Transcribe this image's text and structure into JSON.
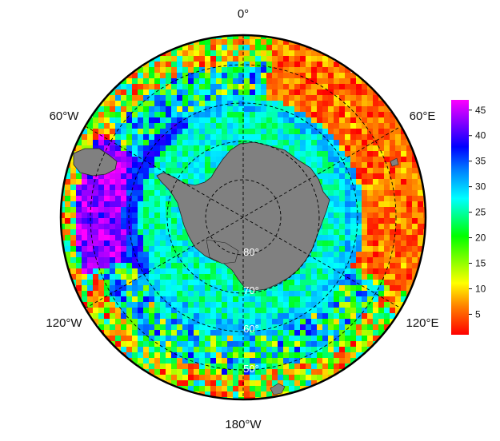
{
  "map": {
    "projection": "south-polar-stereographic",
    "longitude_labels": {
      "top": "0°",
      "upper_left": "60°W",
      "upper_right": "60°E",
      "lower_left": "120°W",
      "lower_right": "120°E",
      "bottom": "180°W"
    },
    "latitude_labels": {
      "lat80": "80°",
      "lat70": "70°",
      "lat60": "60°",
      "lat50": "50°"
    },
    "graticule_style": "dashed",
    "land_color": "#808080",
    "outer_ring_color": "#000000"
  },
  "colorbar": {
    "min": 1,
    "max": 47,
    "ticks": [
      "5",
      "10",
      "15",
      "20",
      "25",
      "30",
      "35",
      "40",
      "45"
    ],
    "colormap": [
      "#ff0000",
      "#ff8000",
      "#ffff00",
      "#00ff00",
      "#00ffff",
      "#0080ff",
      "#0000ff",
      "#8000ff",
      "#ff00ff"
    ]
  }
}
